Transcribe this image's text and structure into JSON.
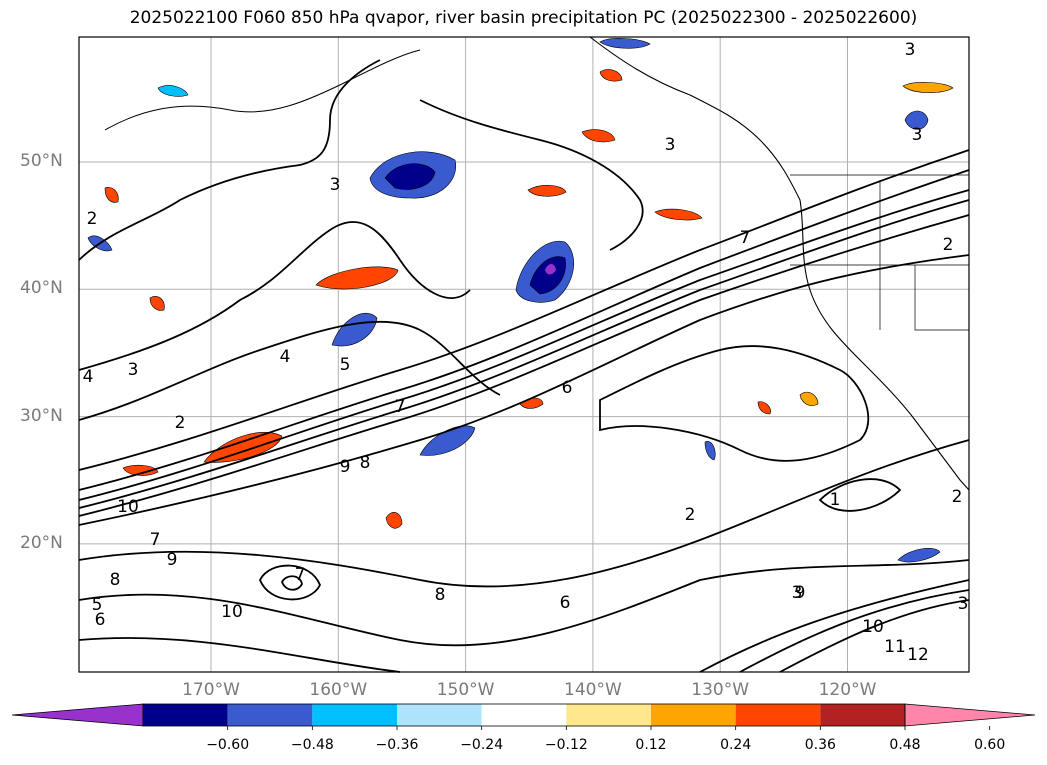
{
  "title": "2025022100 F060 850 hPa qvapor, river basin precipitation PC (2025022300 - 2025022600)",
  "chart_data": {
    "type": "contour-map",
    "title": "2025022100 F060 850 hPa qvapor, river basin precipitation PC (2025022300 - 2025022600)",
    "lat_ticks": [
      "50°N",
      "40°N",
      "30°N",
      "20°N"
    ],
    "lon_ticks": [
      "170°W",
      "160°W",
      "150°W",
      "140°W",
      "130°W",
      "120°W"
    ],
    "lat_values": [
      50,
      40,
      30,
      20
    ],
    "lon_values": [
      -170,
      -160,
      -150,
      -140,
      -130,
      -120
    ],
    "grid": true,
    "colorbar": {
      "placement": "bottom",
      "extend": "both",
      "levels": [
        -0.6,
        -0.48,
        -0.36,
        -0.24,
        -0.12,
        0.12,
        0.24,
        0.36,
        0.48,
        0.6
      ],
      "tick_labels": [
        "−0.60",
        "−0.48",
        "−0.36",
        "−0.24",
        "−0.12",
        "0.12",
        "0.24",
        "0.36",
        "0.48",
        "0.60"
      ],
      "colors": [
        "#9932cc",
        "#00008b",
        "#3a5bd0",
        "#00bfff",
        "#ade3fb",
        "#ffffff",
        "#ffe88c",
        "#ffa500",
        "#ff4500",
        "#b22222",
        "#ff85aa"
      ]
    },
    "contour_labels": [
      "3",
      "3",
      "3",
      "2",
      "3",
      "4",
      "5",
      "3",
      "4",
      "7",
      "7",
      "6",
      "2",
      "2",
      "9",
      "8",
      "10",
      "7",
      "8",
      "9",
      "10",
      "5",
      "6",
      "7",
      "8",
      "9",
      "10",
      "11",
      "12",
      "2",
      "1",
      "3",
      "2",
      "3",
      "6"
    ],
    "shading_colors": {
      "neg_strong": "#00008b",
      "neg_mid": "#3a5bd0",
      "neg_weak": "#00bfff",
      "neg_faint": "#ade3fb",
      "pos_faint": "#ffe88c",
      "pos_weak": "#ffa500",
      "pos_mid": "#ff4500",
      "pos_strong": "#b22222",
      "extreme_neg": "#9932cc"
    }
  }
}
